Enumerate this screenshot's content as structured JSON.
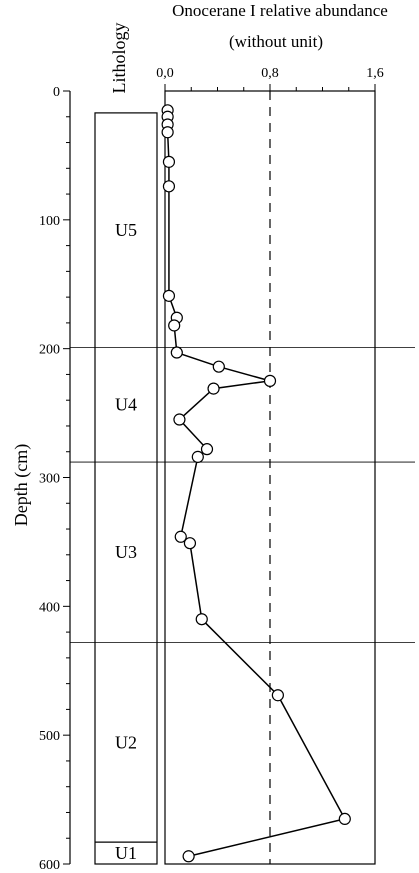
{
  "chart_data": {
    "type": "line",
    "title": "Onocerane I relative abundance",
    "subtitle": "(without unit)",
    "xlabel": "",
    "ylabel": "Depth (cm)",
    "lithology_label": "Lithology",
    "xlim": [
      0.0,
      1.6
    ],
    "ylim": [
      0,
      600
    ],
    "x_ticks": [
      0.0,
      0.8,
      1.6
    ],
    "x_tick_labels": [
      "0,0",
      "0,8",
      "1,6"
    ],
    "y_ticks": [
      0,
      100,
      200,
      300,
      400,
      500,
      600
    ],
    "y_tick_labels": [
      "0",
      "100",
      "200",
      "300",
      "400",
      "500",
      "600"
    ],
    "reference_line_x": 0.8,
    "units": [
      {
        "label": "U5",
        "top": 17,
        "bottom": 199
      },
      {
        "label": "U4",
        "top": 199,
        "bottom": 288
      },
      {
        "label": "U3",
        "top": 288,
        "bottom": 428
      },
      {
        "label": "U2",
        "top": 428,
        "bottom": 583
      },
      {
        "label": "U1",
        "top": 583,
        "bottom": 600
      }
    ],
    "series": [
      {
        "points": [
          {
            "x": 0.02,
            "y": 15
          },
          {
            "x": 0.02,
            "y": 20
          },
          {
            "x": 0.02,
            "y": 26
          },
          {
            "x": 0.02,
            "y": 32
          },
          {
            "x": 0.03,
            "y": 55
          },
          {
            "x": 0.03,
            "y": 74
          },
          {
            "x": 0.03,
            "y": 159
          },
          {
            "x": 0.09,
            "y": 176
          },
          {
            "x": 0.07,
            "y": 182
          },
          {
            "x": 0.09,
            "y": 203
          },
          {
            "x": 0.41,
            "y": 214
          },
          {
            "x": 0.8,
            "y": 225
          },
          {
            "x": 0.37,
            "y": 231
          },
          {
            "x": 0.11,
            "y": 255
          },
          {
            "x": 0.32,
            "y": 278
          },
          {
            "x": 0.25,
            "y": 284
          },
          {
            "x": 0.12,
            "y": 346
          },
          {
            "x": 0.19,
            "y": 351
          },
          {
            "x": 0.28,
            "y": 410
          },
          {
            "x": 0.86,
            "y": 469
          },
          {
            "x": 1.37,
            "y": 565
          },
          {
            "x": 0.18,
            "y": 594
          }
        ]
      }
    ]
  }
}
